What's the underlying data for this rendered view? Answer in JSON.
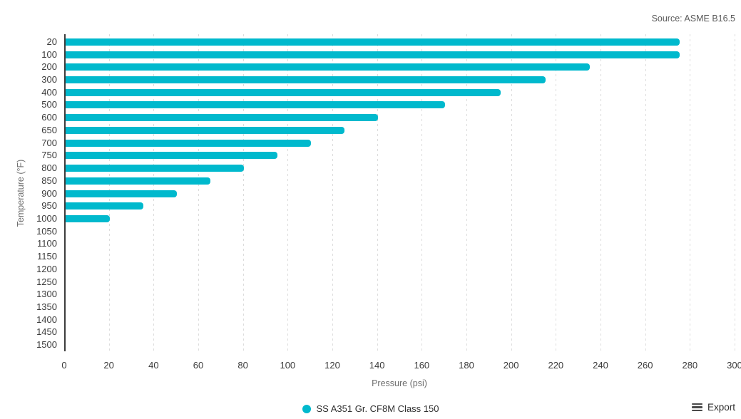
{
  "source_note": "Source: ASME B16.5",
  "legend": {
    "label": "SS A351 Gr. CF8M Class 150"
  },
  "export": {
    "label": "Export"
  },
  "colors": {
    "bar": "#00b9cd",
    "axis_line": "#3d3d3d",
    "gridline": "#dcdcdc",
    "tick_label": "#3b3b3b",
    "axis_title": "#6e6e6e",
    "source_text": "#5a5a5a"
  },
  "chart_data": {
    "type": "bar",
    "orientation": "horizontal",
    "title": "",
    "xlabel": "Pressure (psi)",
    "ylabel": "Temperature (°F)",
    "categories": [
      "20",
      "100",
      "200",
      "300",
      "400",
      "500",
      "600",
      "650",
      "700",
      "750",
      "800",
      "850",
      "900",
      "950",
      "1000",
      "1050",
      "1100",
      "1150",
      "1200",
      "1250",
      "1300",
      "1350",
      "1400",
      "1450",
      "1500"
    ],
    "series": [
      {
        "name": "SS A351 Gr. CF8M Class 150",
        "values": [
          275,
          275,
          235,
          215,
          195,
          170,
          140,
          125,
          110,
          95,
          80,
          65,
          50,
          35,
          20,
          0,
          0,
          0,
          0,
          0,
          0,
          0,
          0,
          0,
          0
        ]
      }
    ],
    "xlim": [
      0,
      300
    ],
    "xticks": [
      0,
      20,
      40,
      60,
      80,
      100,
      120,
      140,
      160,
      180,
      200,
      220,
      240,
      260,
      280,
      300
    ],
    "grid": "vertical-dashed",
    "legend_position": "bottom-center",
    "source": "Source: ASME B16.5"
  }
}
